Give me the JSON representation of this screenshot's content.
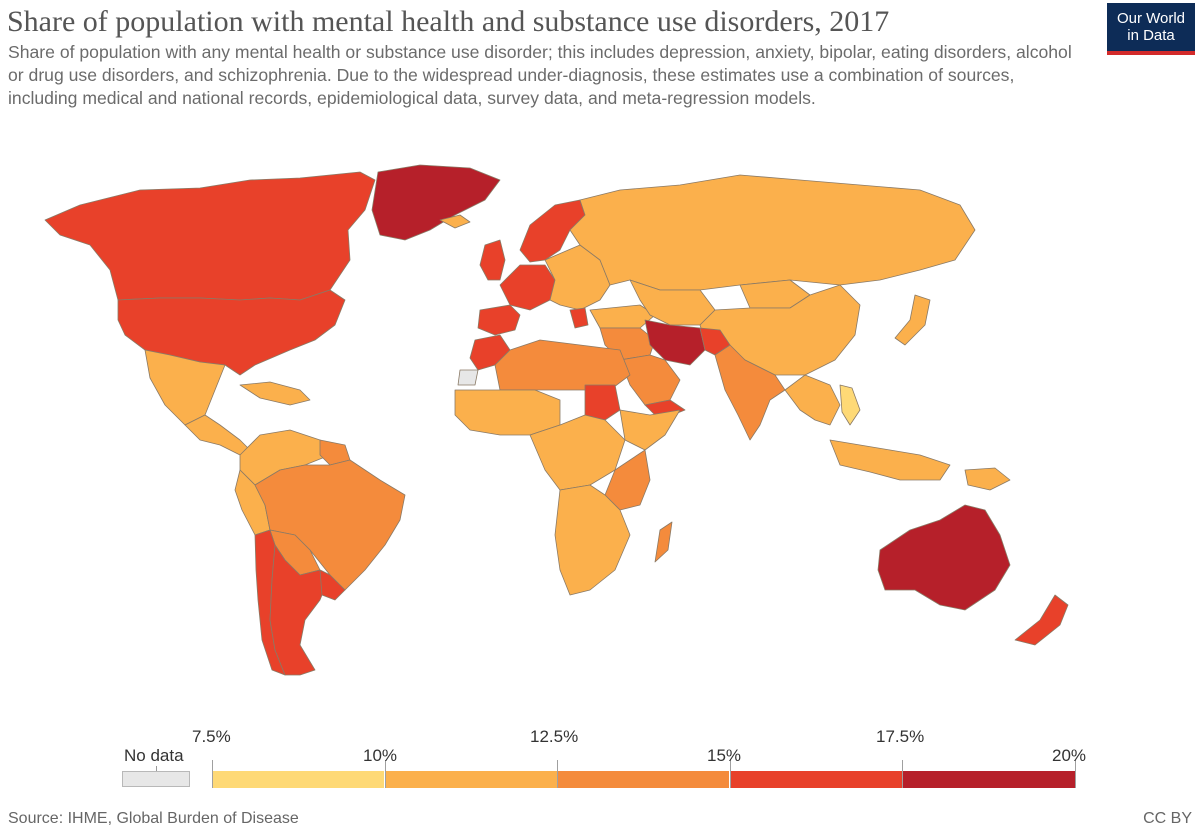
{
  "header": {
    "title": "Share of population with mental health and substance use disorders, 2017",
    "subtitle": "Share of population with any mental health or substance use disorder; this includes depression, anxiety, bipolar, eating disorders, alcohol or drug use disorders, and schizophrenia. Due to the widespread under-diagnosis, these estimates use a combination of sources, including medical and national records, epidemiological data, survey data, and meta-regression models."
  },
  "logo": {
    "line1": "Our World",
    "line2": "in Data",
    "bg": "#0d2c57",
    "accent": "#d32a2a"
  },
  "legend": {
    "no_data_label": "No data",
    "no_data_color": "#e7e7e7",
    "ticks": [
      "7.5%",
      "10%",
      "12.5%",
      "15%",
      "17.5%",
      "20%"
    ],
    "bins": [
      {
        "min": 7.5,
        "max": 10,
        "color": "#fed976"
      },
      {
        "min": 10,
        "max": 12.5,
        "color": "#fbb04c"
      },
      {
        "min": 12.5,
        "max": 15,
        "color": "#f48b3c"
      },
      {
        "min": 15,
        "max": 17.5,
        "color": "#e8412a"
      },
      {
        "min": 17.5,
        "max": 20,
        "color": "#b6202a"
      }
    ]
  },
  "regions": {
    "greenland": "#b6202a",
    "usa": "#e8412a",
    "canada": "#e8412a",
    "mexico": "#fbb04c",
    "central_america": "#fbb04c",
    "caribbean": "#fbb04c",
    "colombia_venezuela": "#fbb04c",
    "guianas": "#f48b3c",
    "peru": "#fbb04c",
    "brazil": "#f48b3c",
    "bolivia_paraguay": "#f48b3c",
    "chile": "#e8412a",
    "argentina": "#e8412a",
    "uruguay": "#e8412a",
    "iceland": "#fbb04c",
    "uk_ireland": "#e8412a",
    "scandinavia": "#e8412a",
    "western_europe": "#e8412a",
    "iberia": "#e8412a",
    "eastern_europe": "#fbb04c",
    "greece": "#e8412a",
    "russia": "#fbb04c",
    "turkey": "#fbb04c",
    "middle_east": "#f48b3c",
    "iran": "#b6202a",
    "afghanistan": "#e8412a",
    "arabia": "#f48b3c",
    "yemen": "#e8412a",
    "central_asia": "#fbb04c",
    "china": "#fbb04c",
    "mongolia": "#fbb04c",
    "japan": "#fbb04c",
    "south_asia": "#f48b3c",
    "southeast_asia": "#fbb04c",
    "vietnam": "#fed976",
    "indonesia": "#fbb04c",
    "png": "#fbb04c",
    "north_africa": "#f48b3c",
    "morocco": "#e8412a",
    "west_sahara": "#e7e7e7",
    "west_africa": "#fbb04c",
    "sudan": "#e8412a",
    "horn_africa": "#fbb04c",
    "central_africa": "#fbb04c",
    "east_africa": "#f48b3c",
    "southern_africa": "#fbb04c",
    "madagascar": "#f48b3c",
    "australia": "#b6202a",
    "new_zealand": "#e8412a"
  },
  "footer": {
    "source": "Source: IHME, Global Burden of Disease",
    "license": "CC BY"
  }
}
